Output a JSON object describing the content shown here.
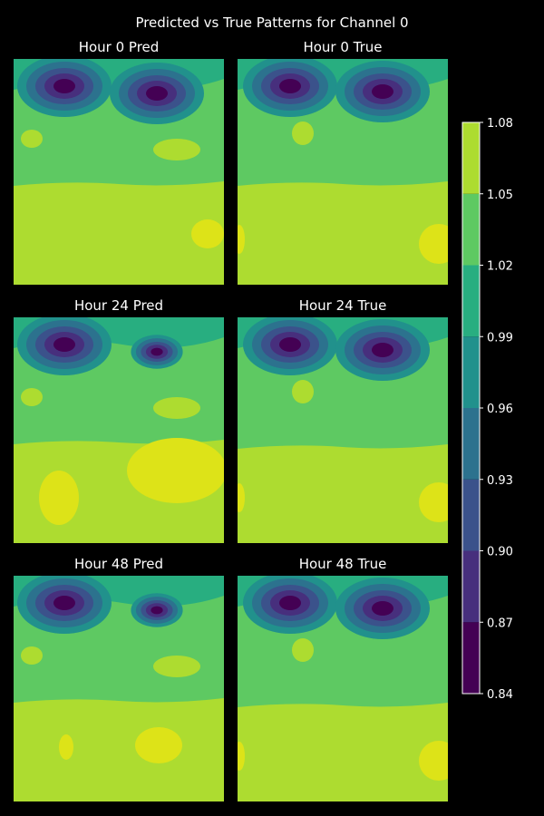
{
  "figure_title": "Predicted vs True Patterns for Channel 0",
  "chart_data": {
    "type": "heatmap",
    "title": "Predicted vs True Patterns for Channel 0",
    "colorbar": {
      "ticks": [
        "0.84",
        "0.87",
        "0.90",
        "0.93",
        "0.96",
        "0.99",
        "1.02",
        "1.05",
        "1.08"
      ],
      "levels": [
        0.84,
        0.87,
        0.9,
        0.93,
        0.96,
        0.99,
        1.02,
        1.05,
        1.08
      ],
      "colors": [
        "#440154",
        "#472f7d",
        "#3b528b",
        "#2c728e",
        "#21918c",
        "#28ae80",
        "#5ec962",
        "#addc30",
        "#dde318"
      ],
      "placement": "right"
    },
    "panels": [
      {
        "title": "Hour 0 Pred",
        "kind": "pred"
      },
      {
        "title": "Hour 0 True",
        "kind": "true"
      },
      {
        "title": "Hour 24 Pred",
        "kind": "pred"
      },
      {
        "title": "Hour 24 True",
        "kind": "true"
      },
      {
        "title": "Hour 48 Pred",
        "kind": "pred"
      },
      {
        "title": "Hour 48 True",
        "kind": "true"
      }
    ],
    "grid": "off",
    "axes": "off"
  }
}
